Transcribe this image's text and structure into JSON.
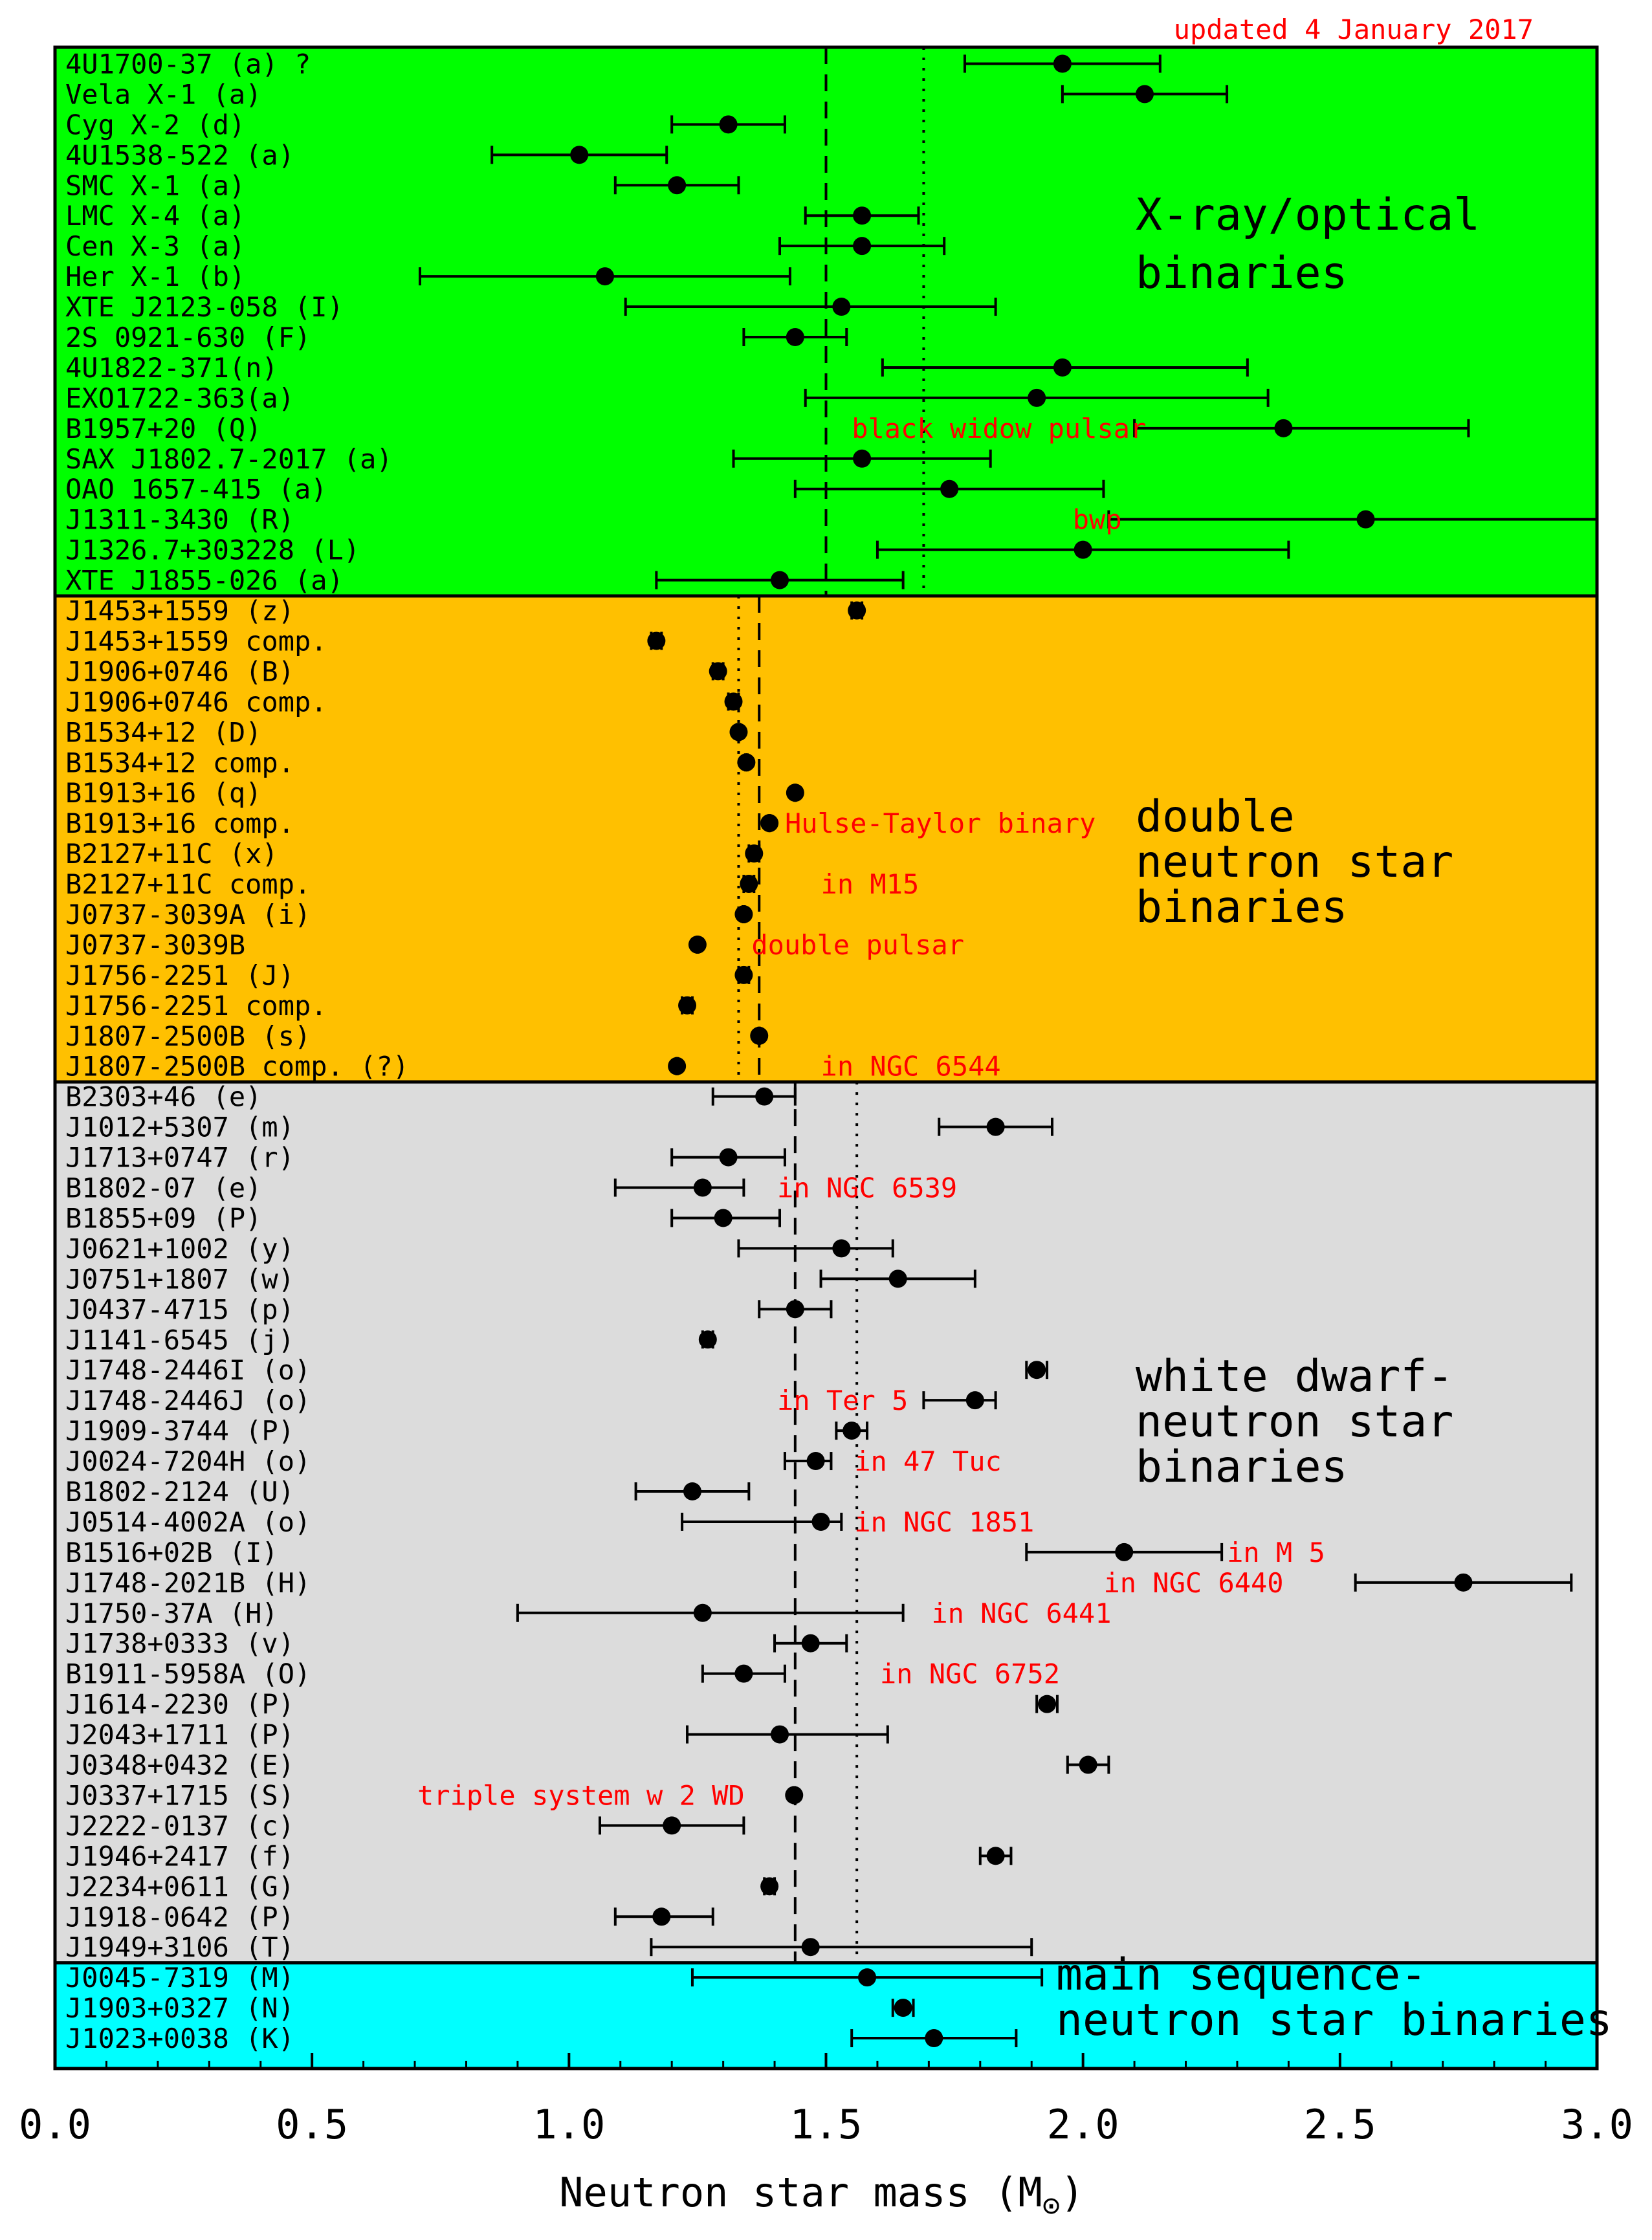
{
  "chart_data": {
    "type": "scatter",
    "title": "",
    "updated_note": "updated 4 January 2017",
    "xlabel": "Neutron star mass (M",
    "xlabel_sub": "⊙",
    "xlabel_end": ")",
    "xlim": [
      0.0,
      3.0
    ],
    "xticks": [
      "0.0",
      "0.5",
      "1.0",
      "1.5",
      "2.0",
      "2.5",
      "3.0"
    ],
    "groups": [
      {
        "name": "X-ray/optical binaries",
        "title_lines": [
          "X-ray/optical",
          "binaries"
        ],
        "color": "#00ff00",
        "mean_line": 1.5,
        "median_line": 1.69,
        "points": [
          {
            "label": "4U1700-37 (a) ?",
            "mass": 1.96,
            "err_low": 0.19,
            "err_high": 0.19
          },
          {
            "label": "Vela X-1 (a)",
            "mass": 2.12,
            "err_low": 0.16,
            "err_high": 0.16
          },
          {
            "label": "Cyg X-2 (d)",
            "mass": 1.31,
            "err_low": 0.11,
            "err_high": 0.11
          },
          {
            "label": "4U1538-522 (a)",
            "mass": 1.02,
            "err_low": 0.17,
            "err_high": 0.17
          },
          {
            "label": "SMC X-1 (a)",
            "mass": 1.21,
            "err_low": 0.12,
            "err_high": 0.12
          },
          {
            "label": "LMC X-4 (a)",
            "mass": 1.57,
            "err_low": 0.11,
            "err_high": 0.11
          },
          {
            "label": "Cen X-3 (a)",
            "mass": 1.57,
            "err_low": 0.16,
            "err_high": 0.16
          },
          {
            "label": "Her X-1 (b)",
            "mass": 1.07,
            "err_low": 0.36,
            "err_high": 0.36
          },
          {
            "label": "XTE J2123-058 (I)",
            "mass": 1.53,
            "err_low": 0.42,
            "err_high": 0.3
          },
          {
            "label": "2S 0921-630 (F)",
            "mass": 1.44,
            "err_low": 0.1,
            "err_high": 0.1
          },
          {
            "label": "4U1822-371(n)",
            "mass": 1.96,
            "err_low": 0.35,
            "err_high": 0.36
          },
          {
            "label": "EXO1722-363(a)",
            "mass": 1.91,
            "err_low": 0.45,
            "err_high": 0.45
          },
          {
            "label": "B1957+20 (Q)",
            "mass": 2.39,
            "err_low": 0.29,
            "err_high": 0.36
          },
          {
            "label": "SAX J1802.7-2017 (a)",
            "mass": 1.57,
            "err_low": 0.25,
            "err_high": 0.25
          },
          {
            "label": "OAO 1657-415 (a)",
            "mass": 1.74,
            "err_low": 0.3,
            "err_high": 0.3
          },
          {
            "label": "J1311-3430 (R)",
            "mass": 2.55,
            "err_low": 0.5,
            "err_high": 0.5
          },
          {
            "label": "J1326.7+303228 (L)",
            "mass": 2.0,
            "err_low": 0.4,
            "err_high": 0.4
          },
          {
            "label": "XTE J1855-026 (a)",
            "mass": 1.41,
            "err_low": 0.24,
            "err_high": 0.24
          }
        ]
      },
      {
        "name": "double neutron star binaries",
        "title_lines": [
          "double",
          "neutron star",
          "binaries"
        ],
        "color": "#ffc000",
        "mean_line": 1.37,
        "median_line": 1.33,
        "points": [
          {
            "label": "J1453+1559 (z)",
            "mass": 1.56,
            "err_low": 0.01,
            "err_high": 0.01
          },
          {
            "label": "J1453+1559 comp.",
            "mass": 1.17,
            "err_low": 0.01,
            "err_high": 0.01
          },
          {
            "label": "J1906+0746 (B)",
            "mass": 1.29,
            "err_low": 0.01,
            "err_high": 0.01
          },
          {
            "label": "J1906+0746 comp.",
            "mass": 1.32,
            "err_low": 0.01,
            "err_high": 0.01
          },
          {
            "label": "B1534+12 (D)",
            "mass": 1.33,
            "err_low": 0.002,
            "err_high": 0.002
          },
          {
            "label": "B1534+12 comp.",
            "mass": 1.345,
            "err_low": 0.002,
            "err_high": 0.002
          },
          {
            "label": "B1913+16 (q)",
            "mass": 1.44,
            "err_low": 0.001,
            "err_high": 0.001
          },
          {
            "label": "B1913+16 comp.",
            "mass": 1.39,
            "err_low": 0.001,
            "err_high": 0.001
          },
          {
            "label": "B2127+11C (x)",
            "mass": 1.36,
            "err_low": 0.01,
            "err_high": 0.01
          },
          {
            "label": "B2127+11C comp.",
            "mass": 1.35,
            "err_low": 0.01,
            "err_high": 0.01
          },
          {
            "label": "J0737-3039A (i)",
            "mass": 1.34,
            "err_low": 0.001,
            "err_high": 0.001
          },
          {
            "label": "J0737-3039B",
            "mass": 1.25,
            "err_low": 0.001,
            "err_high": 0.001
          },
          {
            "label": "J1756-2251 (J)",
            "mass": 1.34,
            "err_low": 0.01,
            "err_high": 0.01
          },
          {
            "label": "J1756-2251 comp.",
            "mass": 1.23,
            "err_low": 0.01,
            "err_high": 0.01
          },
          {
            "label": "J1807-2500B (s)",
            "mass": 1.37,
            "err_low": 0.001,
            "err_high": 0.001
          },
          {
            "label": "J1807-2500B comp. (?)",
            "mass": 1.21,
            "err_low": 0.001,
            "err_high": 0.001
          }
        ]
      },
      {
        "name": "white dwarf-neutron star binaries",
        "title_lines": [
          "white dwarf-",
          "neutron star",
          "binaries"
        ],
        "color": "#dcdcdc",
        "mean_line": 1.44,
        "median_line": 1.56,
        "points": [
          {
            "label": "B2303+46 (e)",
            "mass": 1.38,
            "err_low": 0.1,
            "err_high": 0.06
          },
          {
            "label": "J1012+5307 (m)",
            "mass": 1.83,
            "err_low": 0.11,
            "err_high": 0.11
          },
          {
            "label": "J1713+0747 (r)",
            "mass": 1.31,
            "err_low": 0.11,
            "err_high": 0.11
          },
          {
            "label": "B1802-07 (e)",
            "mass": 1.26,
            "err_low": 0.17,
            "err_high": 0.08
          },
          {
            "label": "B1855+09 (P)",
            "mass": 1.3,
            "err_low": 0.1,
            "err_high": 0.11
          },
          {
            "label": "J0621+1002 (y)",
            "mass": 1.53,
            "err_low": 0.2,
            "err_high": 0.1
          },
          {
            "label": "J0751+1807 (w)",
            "mass": 1.64,
            "err_low": 0.15,
            "err_high": 0.15
          },
          {
            "label": "J0437-4715 (p)",
            "mass": 1.44,
            "err_low": 0.07,
            "err_high": 0.07
          },
          {
            "label": "J1141-6545 (j)",
            "mass": 1.27,
            "err_low": 0.01,
            "err_high": 0.01
          },
          {
            "label": "J1748-2446I (o)",
            "mass": 1.91,
            "err_low": 0.02,
            "err_high": 0.02
          },
          {
            "label": "J1748-2446J (o)",
            "mass": 1.79,
            "err_low": 0.1,
            "err_high": 0.04
          },
          {
            "label": "J1909-3744 (P)",
            "mass": 1.55,
            "err_low": 0.03,
            "err_high": 0.03
          },
          {
            "label": "J0024-7204H (o)",
            "mass": 1.48,
            "err_low": 0.06,
            "err_high": 0.03
          },
          {
            "label": "B1802-2124 (U)",
            "mass": 1.24,
            "err_low": 0.11,
            "err_high": 0.11
          },
          {
            "label": "J0514-4002A (o)",
            "mass": 1.49,
            "err_low": 0.27,
            "err_high": 0.04
          },
          {
            "label": "B1516+02B (I)",
            "mass": 2.08,
            "err_low": 0.19,
            "err_high": 0.19
          },
          {
            "label": "J1748-2021B (H)",
            "mass": 2.74,
            "err_low": 0.21,
            "err_high": 0.21
          },
          {
            "label": "J1750-37A (H)",
            "mass": 1.26,
            "err_low": 0.36,
            "err_high": 0.39
          },
          {
            "label": "J1738+0333 (v)",
            "mass": 1.47,
            "err_low": 0.07,
            "err_high": 0.07
          },
          {
            "label": "B1911-5958A (O)",
            "mass": 1.34,
            "err_low": 0.08,
            "err_high": 0.08
          },
          {
            "label": "J1614-2230 (P)",
            "mass": 1.93,
            "err_low": 0.02,
            "err_high": 0.02
          },
          {
            "label": "J2043+1711 (P)",
            "mass": 1.41,
            "err_low": 0.18,
            "err_high": 0.21
          },
          {
            "label": "J0348+0432 (E)",
            "mass": 2.01,
            "err_low": 0.04,
            "err_high": 0.04
          },
          {
            "label": "J0337+1715 (S)",
            "mass": 1.438,
            "err_low": 0.001,
            "err_high": 0.001
          },
          {
            "label": "J2222-0137 (c)",
            "mass": 1.2,
            "err_low": 0.14,
            "err_high": 0.14
          },
          {
            "label": "J1946+2417 (f)",
            "mass": 1.83,
            "err_low": 0.03,
            "err_high": 0.03
          },
          {
            "label": "J2234+0611 (G)",
            "mass": 1.39,
            "err_low": 0.01,
            "err_high": 0.01
          },
          {
            "label": "J1918-0642 (P)",
            "mass": 1.18,
            "err_low": 0.09,
            "err_high": 0.1
          },
          {
            "label": "J1949+3106 (T)",
            "mass": 1.47,
            "err_low": 0.31,
            "err_high": 0.43
          }
        ]
      },
      {
        "name": "main sequence-neutron star binaries",
        "title_lines": [
          "main sequence-",
          "neutron star binaries"
        ],
        "color": "#00ffff",
        "points": [
          {
            "label": "J0045-7319 (M)",
            "mass": 1.58,
            "err_low": 0.34,
            "err_high": 0.34
          },
          {
            "label": "J1903+0327 (N)",
            "mass": 1.65,
            "err_low": 0.02,
            "err_high": 0.02
          },
          {
            "label": "J1023+0038 (K)",
            "mass": 1.71,
            "err_low": 0.16,
            "err_high": 0.16
          }
        ]
      }
    ],
    "annotations": [
      {
        "text": "black widow pulsar",
        "group": 0,
        "row": 12,
        "x": 1.55
      },
      {
        "text": "bwp",
        "group": 0,
        "row": 15,
        "x": 1.98
      },
      {
        "text": "Hulse-Taylor binary",
        "group": 1,
        "row": 7,
        "x": 1.42
      },
      {
        "text": "in M15",
        "group": 1,
        "row": 9,
        "x": 1.49
      },
      {
        "text": "double pulsar",
        "group": 1,
        "row": 11,
        "x": 1.355
      },
      {
        "text": "in NGC 6544",
        "group": 1,
        "row": 15,
        "x": 1.49
      },
      {
        "text": "in NGC 6539",
        "group": 2,
        "row": 3,
        "x": 1.405
      },
      {
        "text": "in Ter 5",
        "group": 2,
        "row": 10,
        "x": 1.405
      },
      {
        "text": "in 47 Tuc",
        "group": 2,
        "row": 12,
        "x": 1.555
      },
      {
        "text": "in NGC 1851",
        "group": 2,
        "row": 14,
        "x": 1.555
      },
      {
        "text": "in M 5",
        "group": 2,
        "row": 15,
        "x": 2.28
      },
      {
        "text": "in NGC 6440",
        "group": 2,
        "row": 16,
        "x": 2.04
      },
      {
        "text": "in NGC 6441",
        "group": 2,
        "row": 17,
        "x": 1.705
      },
      {
        "text": "in NGC 6752",
        "group": 2,
        "row": 19,
        "x": 1.605
      },
      {
        "text": "triple system w 2 WD",
        "group": 2,
        "row": 23,
        "x": 0.705
      }
    ]
  }
}
